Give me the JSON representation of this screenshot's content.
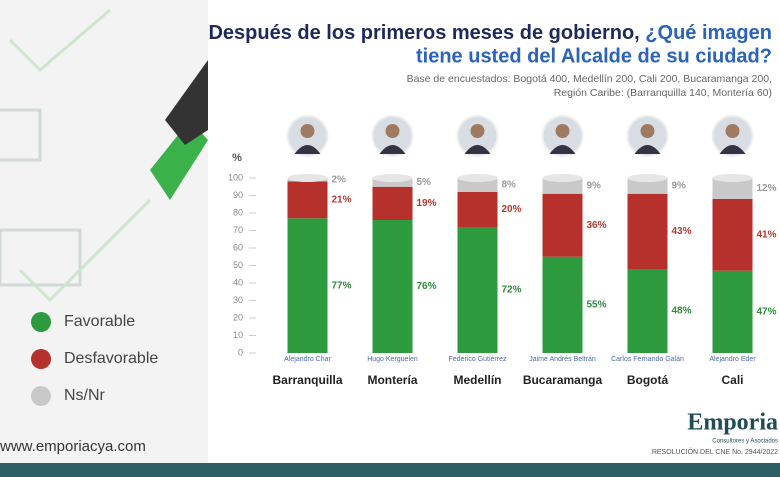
{
  "chart_data": {
    "type": "stacked-bar",
    "title": [
      "Después de los primeros meses de gobierno,",
      "¿Qué imagen",
      "tiene usted del Alcalde de su ciudad?"
    ],
    "subtitle": [
      "Base de encuestados: Bogotá 400, Medellín 200, Cali 200, Bucaramanga 200,",
      "Región Caribe: (Barranquilla 140, Montería 60)"
    ],
    "y_label": "%",
    "categories": [
      "Barranquilla",
      "Montería",
      "Medellín",
      "Bucaramanga",
      "Bogotá",
      "Cali"
    ],
    "people": [
      "Alejandro Char",
      "Hugo Kerguelen",
      "Federico Gutiérrez",
      "Jaime Andrés Beltrán",
      "Carlos Fernando Galán",
      "Alejandro Eder"
    ],
    "series": [
      {
        "name": "Favorable",
        "color": "#2e9a3e",
        "label_color": "#2e8b3a",
        "values": [
          77,
          76,
          72,
          55,
          48,
          47
        ],
        "value_labels": [
          "77%",
          "76%",
          "72%",
          "55%",
          "48%",
          "47%"
        ]
      },
      {
        "name": "Desfavorable",
        "color": "#b7312c",
        "label_color": "#b33a30",
        "values": [
          21,
          19,
          20,
          36,
          43,
          41
        ],
        "value_labels": [
          "21%",
          "19%",
          "20%",
          "36%",
          "43%",
          "41%"
        ]
      },
      {
        "name": "Ns/Nr",
        "color": "#c9c9c9",
        "label_color": "#9a9a9a",
        "values": [
          2,
          5,
          8,
          9,
          9,
          12
        ],
        "value_labels": [
          "2%",
          "5%",
          "8%",
          "9%",
          "9%",
          "12%"
        ]
      }
    ],
    "ylim": [
      0,
      100
    ],
    "yticks": [
      0,
      10,
      20,
      30,
      40,
      50,
      60,
      70,
      80,
      90,
      100
    ],
    "footer": {
      "website": "www.emporiacya.com",
      "brand": "Emporia",
      "tagline": "Consultores y Asociados",
      "resolution": "RESOLUCIÓN DEL CNE No. 2944/2022"
    }
  }
}
